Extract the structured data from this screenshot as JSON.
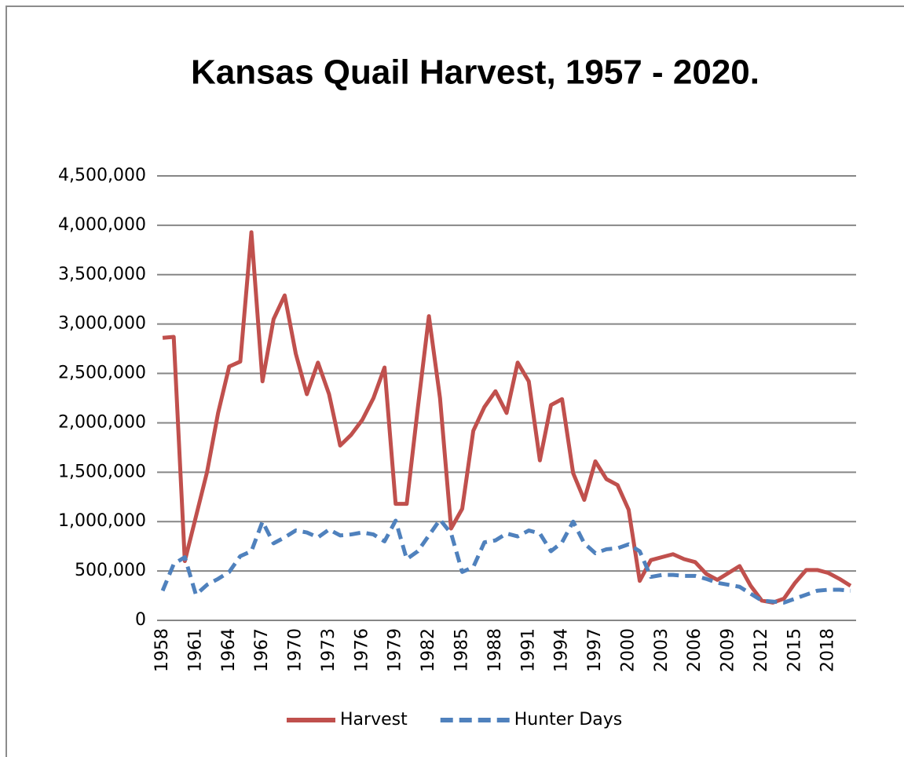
{
  "chart_data": {
    "type": "line",
    "title": "Kansas Quail Harvest, 1957 - 2020.",
    "categories": [
      "1958",
      null,
      null,
      "1961",
      null,
      null,
      "1964",
      null,
      null,
      "1967",
      null,
      null,
      "1970",
      null,
      null,
      "1973",
      null,
      null,
      "1976",
      null,
      null,
      "1979",
      null,
      null,
      "1982",
      null,
      null,
      "1985",
      null,
      null,
      "1988",
      null,
      null,
      "1991",
      null,
      null,
      "1994",
      null,
      null,
      "1997",
      null,
      null,
      "2000",
      null,
      null,
      "2003",
      null,
      null,
      "2006",
      null,
      null,
      "2009",
      null,
      null,
      "2012",
      null,
      null,
      "2015",
      null,
      null,
      "2018",
      null,
      null
    ],
    "series": [
      {
        "name": "Harvest",
        "color": "#c0504d",
        "dashed": false,
        "values": [
          2860000,
          2870000,
          600000,
          1050000,
          1500000,
          2100000,
          2570000,
          2620000,
          3930000,
          2420000,
          3050000,
          3290000,
          2700000,
          2290000,
          2610000,
          2290000,
          1770000,
          1880000,
          2030000,
          2250000,
          2560000,
          1180000,
          1180000,
          2150000,
          3080000,
          2250000,
          930000,
          1130000,
          1920000,
          2160000,
          2320000,
          2100000,
          2610000,
          2420000,
          1620000,
          2180000,
          2240000,
          1490000,
          1220000,
          1610000,
          1430000,
          1370000,
          1120000,
          400000,
          610000,
          640000,
          670000,
          620000,
          590000,
          470000,
          410000,
          480000,
          550000,
          350000,
          200000,
          180000,
          220000,
          380000,
          510000,
          510000,
          480000,
          420000,
          350000
        ]
      },
      {
        "name": "Hunter Days",
        "color": "#4f81bd",
        "dashed": true,
        "values": [
          300000,
          570000,
          640000,
          260000,
          360000,
          420000,
          490000,
          650000,
          700000,
          1000000,
          780000,
          840000,
          910000,
          890000,
          840000,
          920000,
          860000,
          870000,
          890000,
          870000,
          800000,
          1010000,
          620000,
          700000,
          860000,
          1020000,
          880000,
          490000,
          540000,
          790000,
          810000,
          880000,
          850000,
          910000,
          880000,
          700000,
          790000,
          1000000,
          780000,
          680000,
          720000,
          730000,
          770000,
          700000,
          440000,
          460000,
          460000,
          450000,
          450000,
          420000,
          380000,
          360000,
          340000,
          270000,
          200000,
          190000,
          180000,
          220000,
          260000,
          300000,
          310000,
          310000,
          300000
        ]
      }
    ],
    "ylim": [
      0,
      4500000
    ],
    "yticks": [
      0,
      {
        "value": 500000,
        "label": "500,000"
      },
      {
        "value": 1000000,
        "label": "1,000,000"
      },
      {
        "value": 1500000,
        "label": "1,500,000"
      },
      {
        "value": 2000000,
        "label": "2,000,000"
      },
      {
        "value": 2500000,
        "label": "2,500,000"
      },
      {
        "value": 3000000,
        "label": "3,000,000"
      },
      {
        "value": 3500000,
        "label": "3,500,000"
      },
      {
        "value": 4000000,
        "label": "4,000,000"
      },
      {
        "value": 4500000,
        "label": "4,500,000"
      }
    ],
    "grid": true,
    "legend": "bottom"
  }
}
